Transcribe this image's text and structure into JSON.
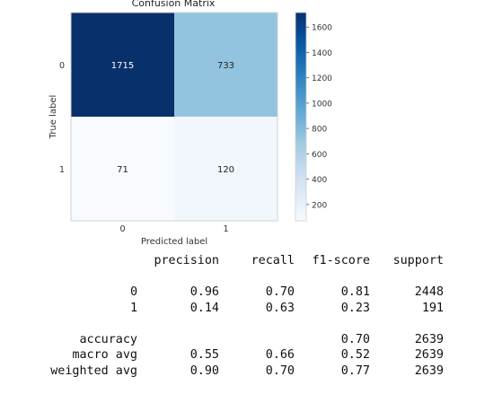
{
  "chart_data": {
    "type": "heatmap",
    "title": "Confusion Matrix",
    "xlabel": "Predicted label",
    "ylabel": "True label",
    "x_categories": [
      "0",
      "1"
    ],
    "y_categories": [
      "0",
      "1"
    ],
    "matrix": [
      [
        1715,
        733
      ],
      [
        71,
        120
      ]
    ],
    "colorbar": {
      "ticks": [
        200,
        400,
        600,
        800,
        1000,
        1200,
        1400,
        1600
      ],
      "range": [
        71,
        1715
      ],
      "colormap": "Blues"
    },
    "grid": false
  },
  "report": {
    "header": [
      "precision",
      "recall",
      "f1-score",
      "support"
    ],
    "rows": [
      {
        "label": "0",
        "precision": "0.96",
        "recall": "0.70",
        "f1": "0.81",
        "support": "2448"
      },
      {
        "label": "1",
        "precision": "0.14",
        "recall": "0.63",
        "f1": "0.23",
        "support": "191"
      }
    ],
    "accuracy": {
      "label": "accuracy",
      "f1": "0.70",
      "support": "2639"
    },
    "averages": [
      {
        "label": "macro avg",
        "precision": "0.55",
        "recall": "0.66",
        "f1": "0.52",
        "support": "2639"
      },
      {
        "label": "weighted avg",
        "precision": "0.90",
        "recall": "0.70",
        "f1": "0.77",
        "support": "2639"
      }
    ]
  }
}
